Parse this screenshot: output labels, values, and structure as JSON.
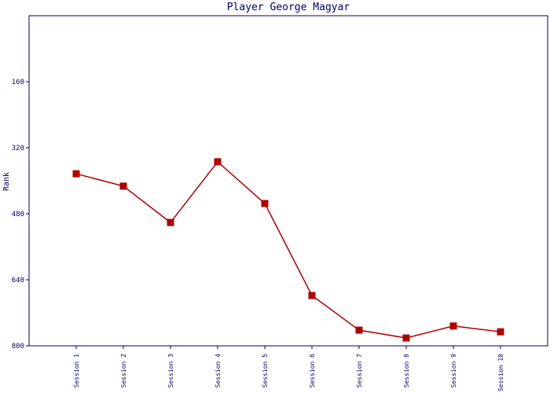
{
  "chart_data": {
    "type": "line",
    "title": "Player George Magyar",
    "y_label": "Rank",
    "categories": [
      "Session 1",
      "Session 2",
      "Session 3",
      "Session 4",
      "Session 5",
      "Session 6",
      "Session 7",
      "Session 8",
      "Session 9",
      "Session 10"
    ],
    "series": [
      {
        "color": "#b00000",
        "values": [
          383,
          413,
          501,
          354,
          455,
          678,
          762,
          781,
          752,
          766
        ]
      }
    ],
    "ylim": [
      0,
      800
    ],
    "y_inverted": true,
    "yticks": [
      160,
      320,
      480,
      640,
      800
    ]
  }
}
